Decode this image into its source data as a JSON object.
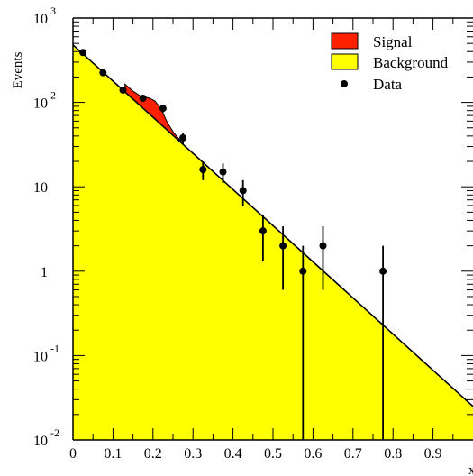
{
  "chart_data": {
    "type": "area",
    "ylabel": "Events",
    "xlabel": "x",
    "xlim": [
      0,
      1.0
    ],
    "ylim": [
      0.01,
      1000
    ],
    "y_scale": "log",
    "x_ticks": [
      {
        "v": 0,
        "label": "0"
      },
      {
        "v": 0.1,
        "label": "0.1"
      },
      {
        "v": 0.2,
        "label": "0.2"
      },
      {
        "v": 0.3,
        "label": "0.3"
      },
      {
        "v": 0.4,
        "label": "0.4"
      },
      {
        "v": 0.5,
        "label": "0.5"
      },
      {
        "v": 0.6,
        "label": "0.6"
      },
      {
        "v": 0.7,
        "label": "0.7"
      },
      {
        "v": 0.8,
        "label": "0.8"
      },
      {
        "v": 0.9,
        "label": "0.9"
      }
    ],
    "y_ticks": [
      {
        "v": 1000,
        "base": "10",
        "exp": "3"
      },
      {
        "v": 100,
        "base": "10",
        "exp": "2"
      },
      {
        "v": 10,
        "base": "10",
        "exp": ""
      },
      {
        "v": 1,
        "base": "1",
        "exp": ""
      },
      {
        "v": 0.1,
        "base": "10",
        "exp": "-1"
      },
      {
        "v": 0.01,
        "base": "10",
        "exp": "-2"
      }
    ],
    "background": {
      "x0": 0,
      "y0": 480,
      "x1": 1.0,
      "y1": 0.025
    },
    "signal": {
      "x": [
        0.13,
        0.15,
        0.17,
        0.19,
        0.205,
        0.22,
        0.235,
        0.25,
        0.265,
        0.28
      ],
      "y": [
        165,
        136,
        118,
        113,
        104,
        84,
        59,
        45,
        37,
        30
      ]
    },
    "data": [
      {
        "x": 0.025,
        "y": 390,
        "err_lo": 20,
        "err_hi": 20
      },
      {
        "x": 0.075,
        "y": 225,
        "err_lo": 15,
        "err_hi": 15
      },
      {
        "x": 0.125,
        "y": 140,
        "err_lo": 12,
        "err_hi": 12
      },
      {
        "x": 0.175,
        "y": 112,
        "err_lo": 10,
        "err_hi": 10
      },
      {
        "x": 0.225,
        "y": 85,
        "err_lo": 9,
        "err_hi": 9
      },
      {
        "x": 0.275,
        "y": 38,
        "err_lo": 6,
        "err_hi": 6
      },
      {
        "x": 0.325,
        "y": 16,
        "err_lo": 4,
        "err_hi": 4
      },
      {
        "x": 0.375,
        "y": 15,
        "err_lo": 3.9,
        "err_hi": 3.9
      },
      {
        "x": 0.425,
        "y": 9,
        "err_lo": 3,
        "err_hi": 3
      },
      {
        "x": 0.475,
        "y": 3,
        "err_lo": 1.7,
        "err_hi": 1.7
      },
      {
        "x": 0.525,
        "y": 2,
        "err_lo": 1.4,
        "err_hi": 1.4
      },
      {
        "x": 0.575,
        "y": 1,
        "err_lo": 0.99,
        "err_hi": 1.0
      },
      {
        "x": 0.625,
        "y": 2,
        "err_lo": 1.4,
        "err_hi": 1.4
      },
      {
        "x": 0.775,
        "y": 1,
        "err_lo": 0.99,
        "err_hi": 1.0
      }
    ],
    "legend": [
      {
        "name": "Signal",
        "kind": "box",
        "color": "#ff2000"
      },
      {
        "name": "Background",
        "kind": "box",
        "color": "#ffff00"
      },
      {
        "name": "Data",
        "kind": "marker",
        "color": "#000000"
      }
    ],
    "legend_position": "top-right",
    "colors": {
      "signal": "#ff2000",
      "background": "#ffff00",
      "data": "#000000",
      "line": "#000000"
    }
  }
}
